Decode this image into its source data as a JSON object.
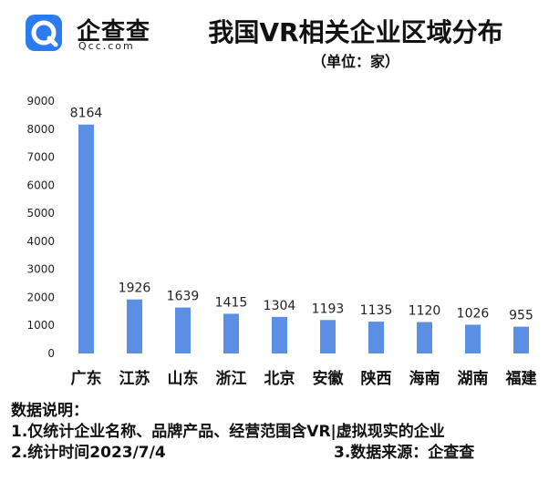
{
  "logo": {
    "name": "企查查",
    "domain": "Qcc.com",
    "colors": {
      "outer": "#2a7bf0",
      "inner": "#ffffff"
    }
  },
  "title": "我国VR相关企业区域分布",
  "subtitle": "（单位：家）",
  "chart_data": {
    "type": "bar",
    "title": "我国VR相关企业区域分布",
    "subtitle": "（单位：家）",
    "categories": [
      "广东",
      "江苏",
      "山东",
      "浙江",
      "北京",
      "安徽",
      "陕西",
      "海南",
      "湖南",
      "福建"
    ],
    "values": [
      8164,
      1926,
      1639,
      1415,
      1304,
      1193,
      1135,
      1120,
      1026,
      955
    ],
    "y_ticks": [
      "0",
      "1000",
      "2000",
      "3000",
      "4000",
      "5000",
      "6000",
      "7000",
      "8000",
      "9000"
    ],
    "ylim": [
      0,
      9000
    ],
    "grid": false,
    "legend": "none",
    "bar_color": "#5b8fe3"
  },
  "notes": {
    "heading": "数据说明：",
    "line1": "1.仅统计企业名称、品牌产品、经营范围含VR|虚拟现实的企业",
    "line2_left": "2.统计时间2023/7/4",
    "line2_right": "3.数据来源：企查查"
  }
}
